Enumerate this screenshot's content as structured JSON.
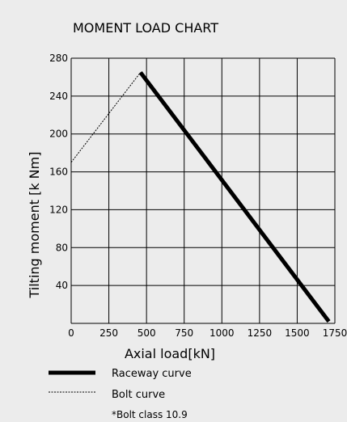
{
  "chart_data": {
    "type": "line",
    "title": "MOMENT LOAD CHART",
    "xlabel": "Axial load[kN]",
    "ylabel": "Tilting moment [k Nm]",
    "xlim": [
      0,
      1750
    ],
    "ylim": [
      0,
      280
    ],
    "x_ticks": [
      0,
      250,
      500,
      750,
      1000,
      1250,
      1500,
      1750
    ],
    "x_tick_labels": [
      "0",
      "250",
      "500",
      "750",
      "1000",
      "1250",
      "1500",
      "1750"
    ],
    "y_ticks": [
      40,
      80,
      120,
      160,
      200,
      240,
      280
    ],
    "y_tick_labels": [
      "40",
      "80",
      "120",
      "160",
      "200",
      "240",
      "280"
    ],
    "grid": true,
    "series": [
      {
        "name": "Raceway curve",
        "style": "solid-thick",
        "color": "#000000",
        "x": [
          460,
          1710
        ],
        "y": [
          265,
          2
        ]
      },
      {
        "name": "Bolt curve",
        "style": "dashed-thin",
        "color": "#000000",
        "x": [
          0,
          460
        ],
        "y": [
          170,
          265
        ]
      }
    ],
    "legend_position": "bottom",
    "note": "*Bolt class 10.9"
  },
  "colors": {
    "background": "#ececec",
    "grid": "#000000"
  }
}
